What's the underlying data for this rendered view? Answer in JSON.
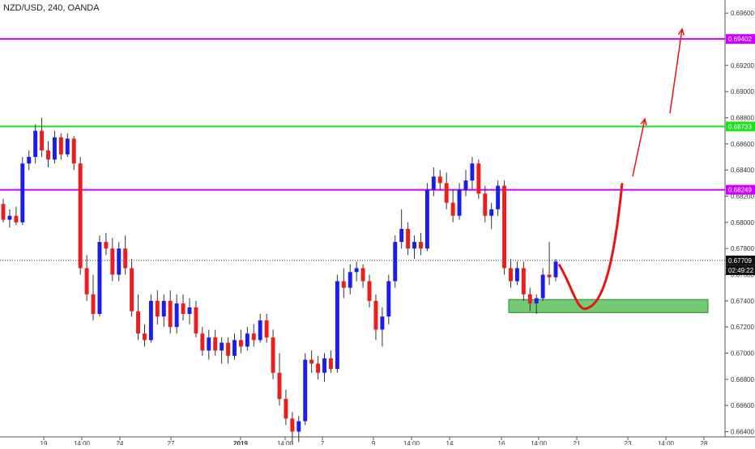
{
  "header": {
    "symbol": "NZD/USD, 240, OANDA"
  },
  "colors": {
    "up_candle": "#1c1cf0",
    "down_candle": "#f01c1c",
    "level_magenta": "#cc00ff",
    "level_green": "#22dd22",
    "projection_red": "#ee1111",
    "zone_fill": "#5cbf5c",
    "zone_border": "#2e8b2e",
    "current_price_bg": "#111111"
  },
  "chart_data": {
    "type": "candlestick",
    "ylim": [
      0.6636,
      0.697
    ],
    "y_ticks": [
      "0.66400",
      "0.66600",
      "0.66800",
      "0.67000",
      "0.67200",
      "0.67400",
      "0.67600",
      "0.67800",
      "0.68000",
      "0.68200",
      "0.68400",
      "0.68600",
      "0.68800",
      "0.69000",
      "0.69200",
      "0.69600"
    ],
    "x_ticks": [
      "19",
      "14:00",
      "24",
      "27",
      "2019",
      "14:00",
      "7",
      "9",
      "14:00",
      "14",
      "16",
      "14:00",
      "21",
      "23",
      "14:00",
      "28"
    ],
    "levels": [
      {
        "value": 0.69402,
        "label": "0.69402",
        "color": "level_magenta"
      },
      {
        "value": 0.68733,
        "label": "0.68733",
        "color": "level_green"
      },
      {
        "value": 0.68249,
        "label": "0.68249",
        "color": "level_magenta"
      }
    ],
    "current_price": {
      "value": 0.67709,
      "label": "0.67709",
      "countdown": "02:49:22"
    },
    "support_zone": {
      "low": 0.6731,
      "high": 0.6741
    },
    "candles": [
      [
        0.6814,
        0.6818,
        0.68,
        0.6802
      ],
      [
        0.6802,
        0.681,
        0.6796,
        0.6805
      ],
      [
        0.6805,
        0.6812,
        0.6798,
        0.68
      ],
      [
        0.68,
        0.685,
        0.6798,
        0.6845
      ],
      [
        0.6845,
        0.6855,
        0.684,
        0.685
      ],
      [
        0.685,
        0.6875,
        0.6845,
        0.687
      ],
      [
        0.687,
        0.688,
        0.685,
        0.6855
      ],
      [
        0.6855,
        0.6862,
        0.6842,
        0.6848
      ],
      [
        0.6848,
        0.687,
        0.6845,
        0.6865
      ],
      [
        0.6865,
        0.6868,
        0.6848,
        0.6852
      ],
      [
        0.6852,
        0.6868,
        0.685,
        0.6864
      ],
      [
        0.6864,
        0.6866,
        0.684,
        0.6845
      ],
      [
        0.6845,
        0.685,
        0.676,
        0.6765
      ],
      [
        0.6765,
        0.6775,
        0.674,
        0.6745
      ],
      [
        0.6745,
        0.676,
        0.6725,
        0.673
      ],
      [
        0.673,
        0.679,
        0.6728,
        0.6785
      ],
      [
        0.6785,
        0.6792,
        0.6775,
        0.678
      ],
      [
        0.678,
        0.6788,
        0.6755,
        0.676
      ],
      [
        0.676,
        0.6785,
        0.6755,
        0.678
      ],
      [
        0.678,
        0.679,
        0.676,
        0.6765
      ],
      [
        0.6765,
        0.6772,
        0.6728,
        0.6732
      ],
      [
        0.6732,
        0.6745,
        0.671,
        0.6715
      ],
      [
        0.6715,
        0.6722,
        0.6705,
        0.671
      ],
      [
        0.671,
        0.6745,
        0.6708,
        0.674
      ],
      [
        0.674,
        0.6748,
        0.6722,
        0.6728
      ],
      [
        0.6728,
        0.6745,
        0.672,
        0.674
      ],
      [
        0.674,
        0.6748,
        0.6715,
        0.672
      ],
      [
        0.672,
        0.6745,
        0.6715,
        0.6738
      ],
      [
        0.6738,
        0.6745,
        0.6725,
        0.673
      ],
      [
        0.673,
        0.6742,
        0.6722,
        0.6735
      ],
      [
        0.6735,
        0.674,
        0.6712,
        0.6715
      ],
      [
        0.6715,
        0.672,
        0.6698,
        0.6702
      ],
      [
        0.6702,
        0.6718,
        0.6695,
        0.6712
      ],
      [
        0.6712,
        0.6718,
        0.6698,
        0.6702
      ],
      [
        0.6702,
        0.6712,
        0.6692,
        0.6708
      ],
      [
        0.6708,
        0.6712,
        0.6692,
        0.6698
      ],
      [
        0.6698,
        0.6715,
        0.6695,
        0.671
      ],
      [
        0.671,
        0.6718,
        0.67,
        0.6705
      ],
      [
        0.6705,
        0.672,
        0.6702,
        0.6715
      ],
      [
        0.6715,
        0.6722,
        0.6705,
        0.671
      ],
      [
        0.671,
        0.673,
        0.6708,
        0.6725
      ],
      [
        0.6725,
        0.673,
        0.6708,
        0.6712
      ],
      [
        0.6712,
        0.6718,
        0.668,
        0.6685
      ],
      [
        0.6685,
        0.67,
        0.666,
        0.6665
      ],
      [
        0.6665,
        0.6672,
        0.6645,
        0.665
      ],
      [
        0.665,
        0.6655,
        0.663,
        0.664
      ],
      [
        0.664,
        0.6652,
        0.6632,
        0.6648
      ],
      [
        0.6648,
        0.67,
        0.6645,
        0.6695
      ],
      [
        0.6695,
        0.6702,
        0.6685,
        0.6692
      ],
      [
        0.6692,
        0.6698,
        0.668,
        0.6685
      ],
      [
        0.6685,
        0.67,
        0.6678,
        0.6696
      ],
      [
        0.6696,
        0.6702,
        0.6685,
        0.6688
      ],
      [
        0.6688,
        0.676,
        0.6685,
        0.6755
      ],
      [
        0.6755,
        0.6765,
        0.6742,
        0.675
      ],
      [
        0.675,
        0.6768,
        0.6745,
        0.6762
      ],
      [
        0.6762,
        0.677,
        0.6755,
        0.6765
      ],
      [
        0.6765,
        0.6768,
        0.675,
        0.6755
      ],
      [
        0.6755,
        0.676,
        0.6735,
        0.674
      ],
      [
        0.674,
        0.6745,
        0.671,
        0.6718
      ],
      [
        0.6718,
        0.6735,
        0.6705,
        0.6728
      ],
      [
        0.6728,
        0.676,
        0.6722,
        0.6755
      ],
      [
        0.6755,
        0.679,
        0.675,
        0.6785
      ],
      [
        0.6785,
        0.681,
        0.678,
        0.6795
      ],
      [
        0.6795,
        0.68,
        0.6775,
        0.678
      ],
      [
        0.678,
        0.679,
        0.6772,
        0.6785
      ],
      [
        0.6785,
        0.6792,
        0.6775,
        0.678
      ],
      [
        0.678,
        0.683,
        0.6778,
        0.6825
      ],
      [
        0.6825,
        0.6842,
        0.682,
        0.6835
      ],
      [
        0.6835,
        0.684,
        0.6825,
        0.683
      ],
      [
        0.683,
        0.6838,
        0.681,
        0.6815
      ],
      [
        0.6815,
        0.6825,
        0.68,
        0.6805
      ],
      [
        0.6805,
        0.683,
        0.6802,
        0.6825
      ],
      [
        0.6825,
        0.684,
        0.682,
        0.6832
      ],
      [
        0.6832,
        0.685,
        0.6825,
        0.6845
      ],
      [
        0.6845,
        0.6848,
        0.6818,
        0.6822
      ],
      [
        0.6822,
        0.6828,
        0.68,
        0.6805
      ],
      [
        0.6805,
        0.6815,
        0.6795,
        0.681
      ],
      [
        0.681,
        0.6832,
        0.6805,
        0.6828
      ],
      [
        0.6828,
        0.6832,
        0.676,
        0.6765
      ],
      [
        0.6765,
        0.6772,
        0.675,
        0.6755
      ],
      [
        0.6755,
        0.677,
        0.6752,
        0.6765
      ],
      [
        0.6765,
        0.677,
        0.674,
        0.6745
      ],
      [
        0.6745,
        0.675,
        0.6732,
        0.6738
      ],
      [
        0.6738,
        0.6745,
        0.673,
        0.6742
      ],
      [
        0.6742,
        0.6765,
        0.674,
        0.676
      ],
      [
        0.676,
        0.6785,
        0.6752,
        0.6758
      ],
      [
        0.6758,
        0.6772,
        0.6755,
        0.677
      ]
    ],
    "projection_path": {
      "type": "curve",
      "points": [
        [
          0.6768,
          0.6742
        ],
        [
          0.6735,
          0.6745
        ],
        [
          0.6782,
          0.683
        ]
      ],
      "arrows": [
        {
          "from": 0.683,
          "to": 0.687
        },
        {
          "from": 0.6873,
          "to": 0.694
        }
      ]
    }
  }
}
